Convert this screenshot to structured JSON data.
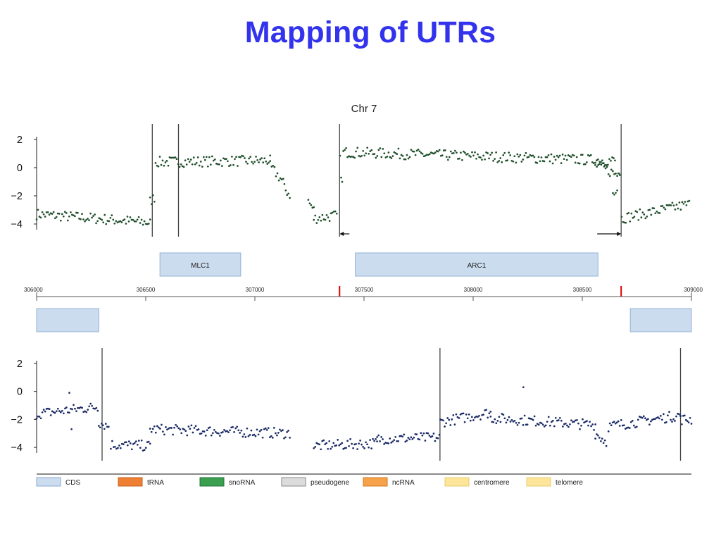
{
  "slide": {
    "title": "Mapping of UTRs"
  },
  "colors": {
    "title": "#3333ee",
    "top_points": "#1f4f2a",
    "bottom_points": "#1a2a66",
    "feature_fill": "#ccdcef",
    "feature_stroke": "#93b3d6",
    "marker": "#dd0000",
    "boundary": "#444444"
  },
  "chart_data": [
    {
      "type": "scatter",
      "title": "Chr 7",
      "strand": "top",
      "xlim": [
        306000,
        309000
      ],
      "ylim": [
        -4.6,
        2.6
      ],
      "yticks": [
        "2",
        "0",
        "−2",
        "−4"
      ],
      "ytick_values": [
        2,
        0,
        -2,
        -4
      ],
      "boundaries": [
        306530,
        306650,
        307388,
        308678
      ],
      "arrows": [
        {
          "x": 307388,
          "direction": "left"
        },
        {
          "x": 308678,
          "direction": "right"
        }
      ],
      "segments": [
        {
          "x0": 306000,
          "x1": 306520,
          "y0": -3.3,
          "y1": -3.9
        },
        {
          "x0": 306520,
          "x1": 306540,
          "y0": -2.4,
          "y1": -2.1
        },
        {
          "x0": 306545,
          "x1": 307070,
          "y0": 0.4,
          "y1": 0.5
        },
        {
          "x0": 307070,
          "x1": 307130,
          "y0": 0.1,
          "y1": -1.0
        },
        {
          "x0": 307135,
          "x1": 307160,
          "y0": -1.5,
          "y1": -1.9
        },
        {
          "x0": 307245,
          "x1": 307270,
          "y0": -2.4,
          "y1": -3.0
        },
        {
          "x0": 307270,
          "x1": 307375,
          "y0": -3.6,
          "y1": -3.4
        },
        {
          "x0": 307390,
          "x1": 307400,
          "y0": 0.5,
          "y1": -1.2
        },
        {
          "x0": 307405,
          "x1": 308650,
          "y0": 1.1,
          "y1": 0.5
        },
        {
          "x0": 308560,
          "x1": 308660,
          "y0": 0.2,
          "y1": -0.5
        },
        {
          "x0": 308640,
          "x1": 308660,
          "y0": -1.8,
          "y1": -1.3
        },
        {
          "x0": 308665,
          "x1": 308672,
          "y0": -0.3,
          "y1": -0.3
        },
        {
          "x0": 308680,
          "x1": 308990,
          "y0": -3.6,
          "y1": -2.6
        }
      ]
    },
    {
      "type": "track",
      "features": [
        {
          "label": "MLC1",
          "start": 306565,
          "end": 306935,
          "strand": "top"
        },
        {
          "label": "ARC1",
          "start": 307460,
          "end": 308572,
          "strand": "top"
        },
        {
          "label": "",
          "start": 306000,
          "end": 306285,
          "strand": "bottom"
        },
        {
          "label": "",
          "start": 308720,
          "end": 309000,
          "strand": "bottom"
        }
      ],
      "ruler": {
        "ticks": [
          306000,
          306500,
          307000,
          307500,
          308000,
          308500,
          309000
        ],
        "tick_labels": [
          "306000",
          "306500",
          "307000",
          "307500",
          "308000",
          "308500",
          "309000"
        ]
      },
      "markers": [
        307388,
        308678
      ]
    },
    {
      "type": "scatter",
      "strand": "bottom",
      "xlim": [
        306000,
        309000
      ],
      "ylim": [
        -4.6,
        2.6
      ],
      "yticks": [
        "2",
        "0",
        "−2",
        "−4"
      ],
      "ytick_values": [
        2,
        0,
        -2,
        -4
      ],
      "boundaries": [
        306300,
        307848,
        308950
      ],
      "segments": [
        {
          "x0": 306000,
          "x1": 306280,
          "y0": -1.6,
          "y1": -1.1
        },
        {
          "x0": 306285,
          "x1": 306330,
          "y0": -2.2,
          "y1": -2.5
        },
        {
          "x0": 306340,
          "x1": 306520,
          "y0": -3.8,
          "y1": -3.9
        },
        {
          "x0": 306520,
          "x1": 307160,
          "y0": -2.7,
          "y1": -3.0
        },
        {
          "x0": 307270,
          "x1": 307560,
          "y0": -3.9,
          "y1": -3.7
        },
        {
          "x0": 307560,
          "x1": 307845,
          "y0": -3.4,
          "y1": -3.3
        },
        {
          "x0": 307850,
          "x1": 308080,
          "y0": -2.2,
          "y1": -1.5
        },
        {
          "x0": 308080,
          "x1": 308560,
          "y0": -1.9,
          "y1": -2.4
        },
        {
          "x0": 308560,
          "x1": 308610,
          "y0": -3.0,
          "y1": -3.6
        },
        {
          "x0": 308620,
          "x1": 308950,
          "y0": -2.5,
          "y1": -1.7
        },
        {
          "x0": 308950,
          "x1": 309000,
          "y0": -2.0,
          "y1": -2.0
        }
      ],
      "outliers": [
        [
          306150,
          -0.1
        ],
        [
          306160,
          -2.7
        ],
        [
          308230,
          0.3
        ]
      ]
    }
  ],
  "legend": {
    "items": [
      {
        "label": "CDS",
        "color": "#ccdcef",
        "border": "#8aaad0"
      },
      {
        "label": "tRNA",
        "color": "#ee7f33",
        "border": "#c0601c"
      },
      {
        "label": "snoRNA",
        "color": "#3a9f4f",
        "border": "#22703a"
      },
      {
        "label": "pseudogene",
        "color": "#dcdcdc",
        "border": "#8a8a8a"
      },
      {
        "label": "ncRNA",
        "color": "#f6a24a",
        "border": "#d07a20"
      },
      {
        "label": "centromere",
        "color": "#fde59a",
        "border": "#e8cc70"
      },
      {
        "label": "telomere",
        "color": "#fde59a",
        "border": "#e8cc70"
      }
    ]
  }
}
